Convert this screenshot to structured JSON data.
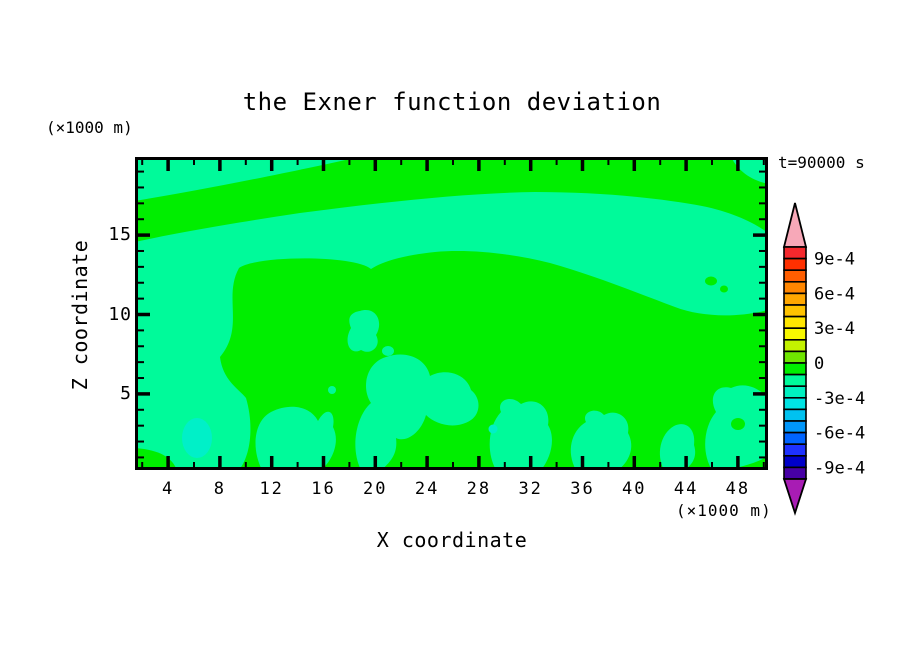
{
  "title": "the Exner function deviation",
  "timestamp": "t=90000 s",
  "axes": {
    "x": {
      "label": "X coordinate",
      "unit": "(×1000 m)",
      "major_ticks": [
        4,
        8,
        12,
        16,
        20,
        24,
        28,
        32,
        36,
        40,
        44,
        48
      ],
      "minor_ticks": [
        2,
        6,
        10,
        14,
        18,
        22,
        26,
        30,
        34,
        38,
        42,
        46,
        50
      ]
    },
    "y": {
      "label": "Z coordinate",
      "unit": "(×1000 m)",
      "major_ticks": [
        5,
        10,
        15
      ],
      "minor_ticks": [
        1,
        2,
        3,
        4,
        6,
        7,
        8,
        9,
        11,
        12,
        13,
        14,
        16,
        17,
        18,
        19
      ]
    }
  },
  "field_colors": {
    "pos_0_to_1e-4": "#00EE00",
    "neg_1e-4_to_0": "#00FA9A",
    "neg_2e-4_to_1e-4": "#00F0C8"
  },
  "colorbar": {
    "labels": [
      "9e-4",
      "6e-4",
      "3e-4",
      "0",
      "-3e-4",
      "-6e-4",
      "-9e-4"
    ],
    "segment_colors": [
      "#F5282D",
      "#FF3000",
      "#FF5E00",
      "#FF8600",
      "#FFA700",
      "#FFC300",
      "#FFE600",
      "#F8F800",
      "#C3F200",
      "#6FE600",
      "#00EE00",
      "#00FA9A",
      "#00F0C0",
      "#00E4E4",
      "#00C2F0",
      "#0096FA",
      "#0064FF",
      "#1E32FF",
      "#0000C8",
      "#4700A5"
    ],
    "over_color": "#F7A8B8",
    "under_color": "#A81CB4"
  },
  "chart_data": {
    "type": "filled_contour",
    "title": "the Exner function deviation",
    "time_annotation": "t=90000 s",
    "xlabel": "X coordinate (×1000 m)",
    "ylabel": "Z coordinate (×1000 m)",
    "x_range": [
      1.5,
      50
    ],
    "y_range": [
      0,
      19.8
    ],
    "x_major_ticks": [
      4,
      8,
      12,
      16,
      20,
      24,
      28,
      32,
      36,
      40,
      44,
      48
    ],
    "y_major_ticks": [
      5,
      10,
      15
    ],
    "contour_interval": 0.0001,
    "labeled_levels": [
      0.0009,
      0.0006,
      0.0003,
      0,
      -0.0003,
      -0.0006,
      -0.0009
    ],
    "colorbar_span": [
      -0.001,
      0.001
    ],
    "regions_present": [
      {
        "value_range": "0 to 1e-4",
        "color": "#00EE00",
        "description": "dominant background over most of the domain"
      },
      {
        "value_range": "-1e-4 to 0",
        "color": "#00FA9A",
        "description": "horizontal band near z=13-16 km across full width, left-edge column below z=15, top-left and top-right corner patches, and many blobs along the lower boundary z<4 km"
      },
      {
        "value_range": "-2e-4 to -1e-4",
        "color": "#00F0C8",
        "description": "two small near-surface ovals at approximately x=6,z=2 and x=28.5,z=3"
      }
    ],
    "legend_position": "right",
    "grid": false
  }
}
